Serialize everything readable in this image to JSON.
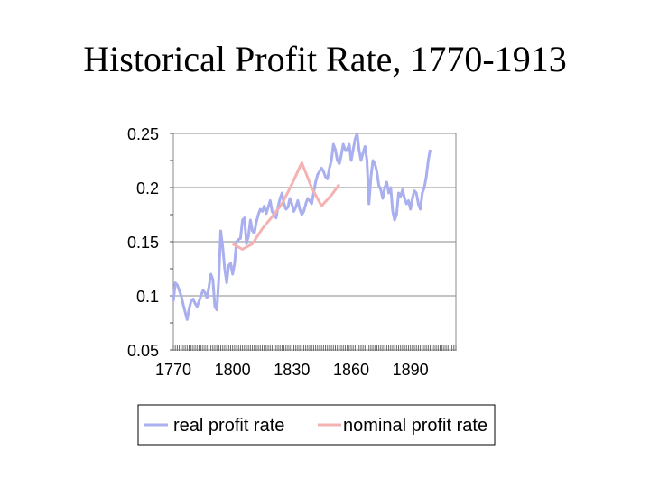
{
  "chart_data": {
    "type": "line",
    "title": "Historical Profit Rate, 1770-1913",
    "xlabel": "",
    "ylabel": "",
    "xlim": [
      1770,
      1913
    ],
    "ylim": [
      0.05,
      0.25
    ],
    "y_ticks": [
      0.25,
      0.2,
      0.15,
      0.1,
      0.05
    ],
    "y_tick_labels": [
      "0.25",
      "0.2",
      "0.15",
      "0.1",
      "0.05"
    ],
    "x_tick_labels": [
      {
        "year": 1770,
        "label": "1770"
      },
      {
        "year": 1800,
        "label": "1800"
      },
      {
        "year": 1830,
        "label": "1830"
      },
      {
        "year": 1860,
        "label": "1860"
      },
      {
        "year": 1890,
        "label": "1890"
      }
    ],
    "grid": "horizontal",
    "legend_position": "bottom",
    "series": [
      {
        "name": "real profit rate",
        "color": "#a9afef",
        "points": [
          [
            1770,
            0.095
          ],
          [
            1771,
            0.112
          ],
          [
            1772,
            0.11
          ],
          [
            1773,
            0.105
          ],
          [
            1774,
            0.1
          ],
          [
            1775,
            0.092
          ],
          [
            1776,
            0.085
          ],
          [
            1777,
            0.078
          ],
          [
            1778,
            0.088
          ],
          [
            1779,
            0.095
          ],
          [
            1780,
            0.097
          ],
          [
            1781,
            0.093
          ],
          [
            1782,
            0.09
          ],
          [
            1783,
            0.095
          ],
          [
            1784,
            0.1
          ],
          [
            1785,
            0.105
          ],
          [
            1786,
            0.103
          ],
          [
            1787,
            0.098
          ],
          [
            1788,
            0.108
          ],
          [
            1789,
            0.12
          ],
          [
            1790,
            0.115
          ],
          [
            1791,
            0.09
          ],
          [
            1792,
            0.087
          ],
          [
            1793,
            0.115
          ],
          [
            1794,
            0.16
          ],
          [
            1795,
            0.145
          ],
          [
            1796,
            0.125
          ],
          [
            1797,
            0.112
          ],
          [
            1798,
            0.128
          ],
          [
            1799,
            0.13
          ],
          [
            1800,
            0.12
          ],
          [
            1801,
            0.13
          ],
          [
            1802,
            0.15
          ],
          [
            1803,
            0.152
          ],
          [
            1804,
            0.153
          ],
          [
            1805,
            0.17
          ],
          [
            1806,
            0.172
          ],
          [
            1807,
            0.148
          ],
          [
            1808,
            0.155
          ],
          [
            1809,
            0.17
          ],
          [
            1810,
            0.16
          ],
          [
            1811,
            0.158
          ],
          [
            1812,
            0.168
          ],
          [
            1813,
            0.175
          ],
          [
            1814,
            0.18
          ],
          [
            1815,
            0.178
          ],
          [
            1816,
            0.183
          ],
          [
            1817,
            0.176
          ],
          [
            1818,
            0.182
          ],
          [
            1819,
            0.188
          ],
          [
            1820,
            0.178
          ],
          [
            1821,
            0.175
          ],
          [
            1822,
            0.172
          ],
          [
            1823,
            0.182
          ],
          [
            1824,
            0.19
          ],
          [
            1825,
            0.195
          ],
          [
            1826,
            0.185
          ],
          [
            1827,
            0.18
          ],
          [
            1828,
            0.182
          ],
          [
            1829,
            0.19
          ],
          [
            1830,
            0.185
          ],
          [
            1831,
            0.178
          ],
          [
            1832,
            0.182
          ],
          [
            1833,
            0.188
          ],
          [
            1834,
            0.18
          ],
          [
            1835,
            0.175
          ],
          [
            1836,
            0.178
          ],
          [
            1837,
            0.185
          ],
          [
            1838,
            0.19
          ],
          [
            1839,
            0.188
          ],
          [
            1840,
            0.185
          ],
          [
            1841,
            0.195
          ],
          [
            1842,
            0.205
          ],
          [
            1843,
            0.212
          ],
          [
            1844,
            0.215
          ],
          [
            1845,
            0.218
          ],
          [
            1846,
            0.215
          ],
          [
            1847,
            0.21
          ],
          [
            1848,
            0.208
          ],
          [
            1849,
            0.218
          ],
          [
            1850,
            0.225
          ],
          [
            1851,
            0.24
          ],
          [
            1852,
            0.235
          ],
          [
            1853,
            0.225
          ],
          [
            1854,
            0.222
          ],
          [
            1855,
            0.23
          ],
          [
            1856,
            0.24
          ],
          [
            1857,
            0.235
          ],
          [
            1858,
            0.235
          ],
          [
            1859,
            0.24
          ],
          [
            1860,
            0.225
          ],
          [
            1861,
            0.235
          ],
          [
            1862,
            0.245
          ],
          [
            1863,
            0.25
          ],
          [
            1864,
            0.235
          ],
          [
            1865,
            0.225
          ],
          [
            1866,
            0.232
          ],
          [
            1867,
            0.238
          ],
          [
            1868,
            0.225
          ],
          [
            1869,
            0.185
          ],
          [
            1870,
            0.21
          ],
          [
            1871,
            0.225
          ],
          [
            1872,
            0.222
          ],
          [
            1873,
            0.215
          ],
          [
            1874,
            0.202
          ],
          [
            1875,
            0.198
          ],
          [
            1876,
            0.19
          ],
          [
            1877,
            0.2
          ],
          [
            1878,
            0.205
          ],
          [
            1879,
            0.195
          ],
          [
            1880,
            0.2
          ],
          [
            1881,
            0.178
          ],
          [
            1882,
            0.17
          ],
          [
            1883,
            0.175
          ],
          [
            1884,
            0.195
          ],
          [
            1885,
            0.192
          ],
          [
            1886,
            0.198
          ],
          [
            1887,
            0.19
          ],
          [
            1888,
            0.185
          ],
          [
            1889,
            0.188
          ],
          [
            1890,
            0.18
          ],
          [
            1891,
            0.19
          ],
          [
            1892,
            0.197
          ],
          [
            1893,
            0.195
          ],
          [
            1894,
            0.185
          ],
          [
            1895,
            0.18
          ],
          [
            1896,
            0.195
          ],
          [
            1897,
            0.2
          ],
          [
            1898,
            0.21
          ],
          [
            1899,
            0.225
          ],
          [
            1900,
            0.235
          ]
        ]
      },
      {
        "name": "nominal profit rate",
        "color": "#f4b3b3",
        "points": [
          [
            1800,
            0.148
          ],
          [
            1805,
            0.143
          ],
          [
            1810,
            0.148
          ],
          [
            1815,
            0.162
          ],
          [
            1820,
            0.173
          ],
          [
            1825,
            0.185
          ],
          [
            1830,
            0.203
          ],
          [
            1835,
            0.223
          ],
          [
            1840,
            0.2
          ],
          [
            1845,
            0.183
          ],
          [
            1850,
            0.193
          ],
          [
            1854,
            0.203
          ]
        ]
      }
    ]
  }
}
